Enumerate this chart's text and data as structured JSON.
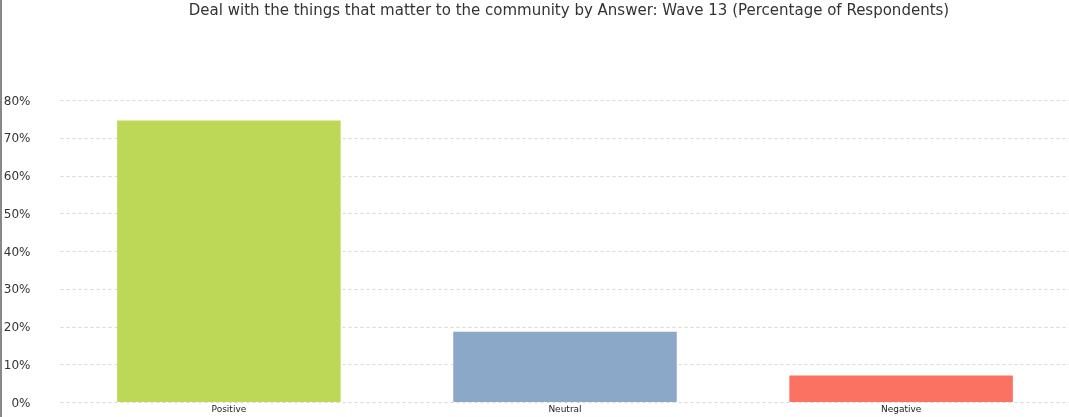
{
  "chart_data": {
    "type": "bar",
    "title": "Deal with the things that matter to the community by Answer: Wave 13 (Percentage of Respondents)",
    "categories": [
      "Positive",
      "Neutral",
      "Negative"
    ],
    "values": [
      74.6,
      18.6,
      7.0
    ],
    "colors": [
      "#bdd856",
      "#8ca8c8",
      "#fc7262"
    ],
    "ylim": [
      0,
      80
    ],
    "yticks": [
      {
        "value": 0,
        "label": "0%"
      },
      {
        "value": 10,
        "label": "10%"
      },
      {
        "value": 20,
        "label": "20%"
      },
      {
        "value": 30,
        "label": "30%"
      },
      {
        "value": 40,
        "label": "40%"
      },
      {
        "value": 50,
        "label": "50%"
      },
      {
        "value": 60,
        "label": "60%"
      },
      {
        "value": 70,
        "label": "70%"
      },
      {
        "value": 80,
        "label": "80%"
      }
    ],
    "grid": "y"
  }
}
